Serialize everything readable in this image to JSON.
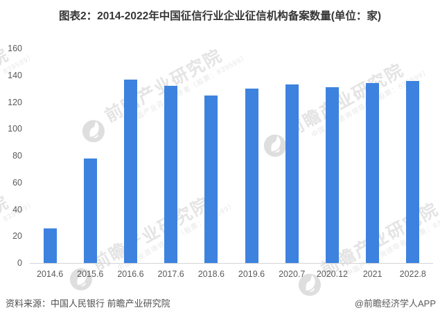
{
  "title": "图表2：2014-2022年中国征信行业企业征信机构备案数量(单位：家)",
  "chart_data": {
    "type": "bar",
    "title": "图表2：2014-2022年中国征信行业企业征信机构备案数量(单位：家)",
    "unit": "家",
    "categories": [
      "2014.6",
      "2015.6",
      "2016.6",
      "2017.6",
      "2018.6",
      "2019.6",
      "2020.7",
      "2020.12",
      "2021",
      "2022.8"
    ],
    "values": [
      26,
      78,
      137,
      132,
      125,
      130,
      133,
      131,
      134,
      136
    ],
    "xlabel": "",
    "ylabel": "",
    "ylim": [
      0,
      160
    ],
    "ytick_step": 20,
    "yticks": [
      0,
      20,
      40,
      60,
      80,
      100,
      120,
      140,
      160
    ],
    "grid": false,
    "legend": false,
    "bar_color": "#3d82df",
    "axis_line_color": "#d4d4d4",
    "label_color": "#595959"
  },
  "watermark": {
    "brand": "前瞻产业研究院",
    "tagline": "中国产业咨询领导者（股票：839599）",
    "logo_color": "#dedede",
    "text_color": "#e4e4e4"
  },
  "footer": {
    "source": "资料来源：中国人民银行 前瞻产业研究院",
    "credit": "@前瞻经济学人APP"
  }
}
